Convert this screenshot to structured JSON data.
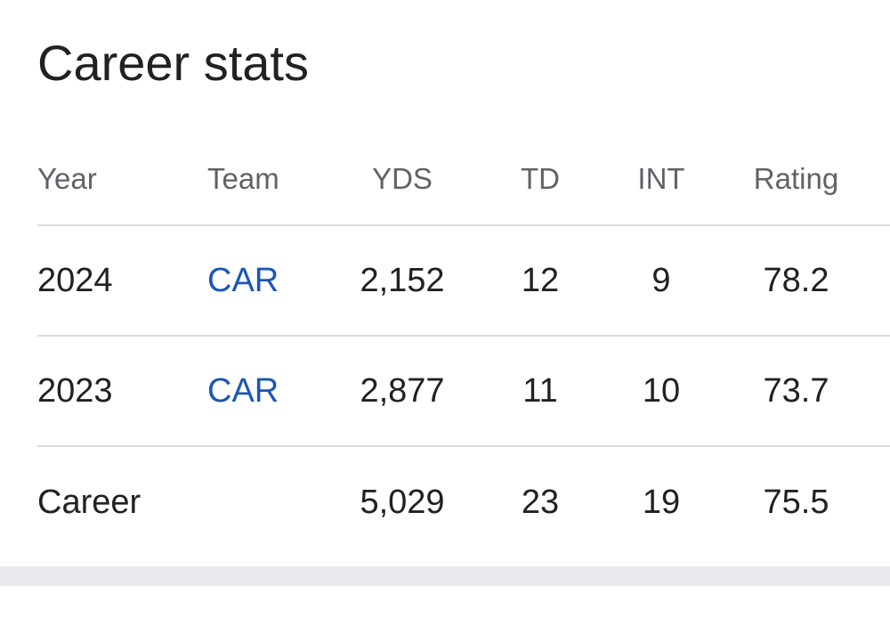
{
  "title": "Career stats",
  "columns": {
    "year": "Year",
    "team": "Team",
    "yds": "YDS",
    "td": "TD",
    "int": "INT",
    "rating": "Rating"
  },
  "rows": [
    {
      "year": "2024",
      "team": "CAR",
      "yds": "2,152",
      "td": "12",
      "int": "9",
      "rating": "78.2"
    },
    {
      "year": "2023",
      "team": "CAR",
      "yds": "2,877",
      "td": "11",
      "int": "10",
      "rating": "73.7"
    }
  ],
  "career": {
    "label": "Career",
    "yds": "5,029",
    "td": "23",
    "int": "19",
    "rating": "75.5"
  },
  "colors": {
    "text": "#202124",
    "header_text": "#5f6368",
    "link": "#1a57b5",
    "divider": "#dadce0",
    "bottom_bar": "#e8e9ec"
  }
}
